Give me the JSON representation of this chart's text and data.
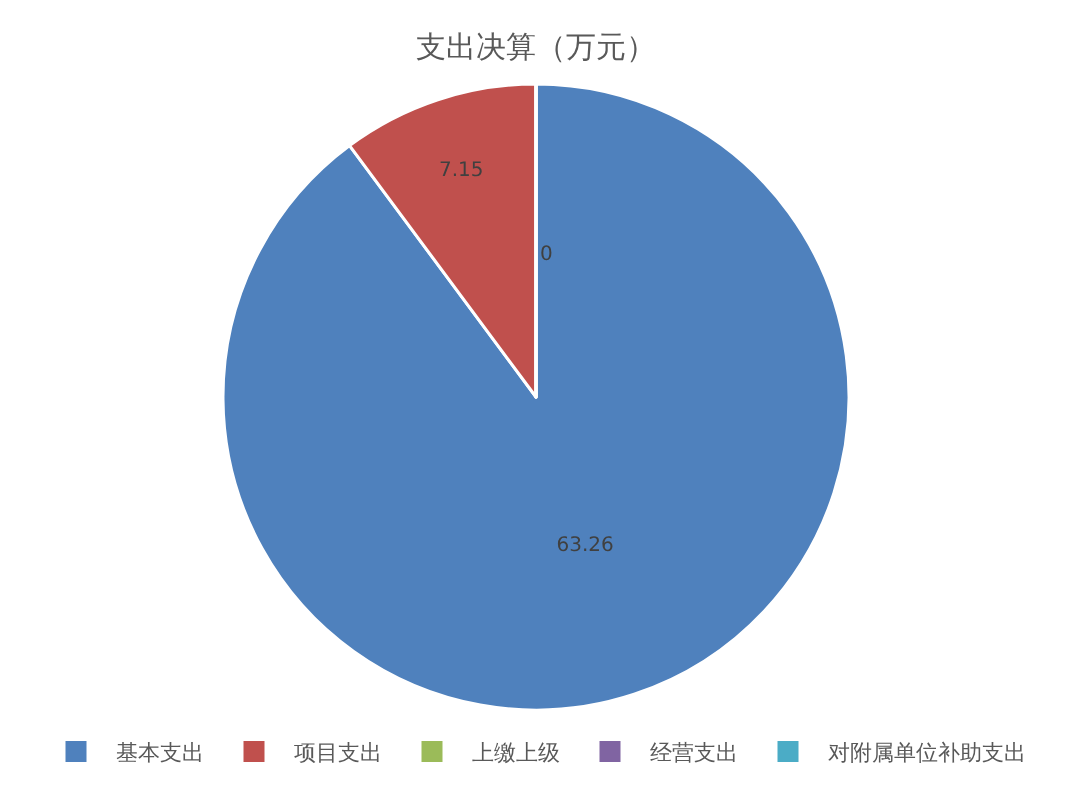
{
  "chart_data": {
    "type": "pie",
    "title": "支出决算（万元）",
    "categories": [
      "基本支出",
      "项目支出",
      "上缴上级",
      "经营支出",
      "对附属单位补助支出"
    ],
    "values": [
      63.26,
      7.15,
      0,
      0,
      0
    ],
    "colors": [
      "#4f81bd",
      "#c0504d",
      "#9bbb59",
      "#8064a2",
      "#4bacc6"
    ],
    "value_labels": [
      "63.26",
      "7.15",
      "0",
      null,
      null
    ],
    "legend": "bottom"
  }
}
